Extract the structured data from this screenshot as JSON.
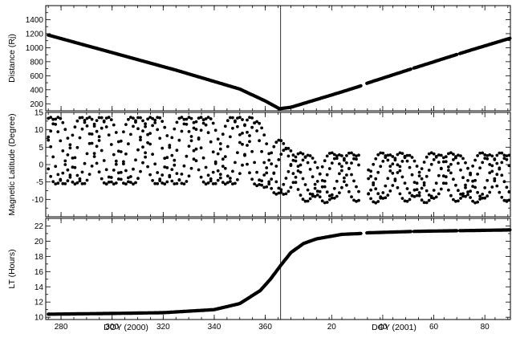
{
  "chart_data": [
    {
      "type": "line",
      "panel": "top",
      "ylabel": "Distance (Rj)",
      "xlabel": "",
      "yticks": [
        200,
        400,
        600,
        800,
        1000,
        1200,
        1400
      ],
      "ylim": [
        100,
        1600
      ],
      "series": [
        {
          "x": [
            275,
            300,
            325,
            350,
            360,
            365.5,
            370,
            380,
            390,
            397,
            400,
            420,
            440,
            460
          ],
          "y": [
            1180,
            930,
            680,
            410,
            240,
            130,
            150,
            260,
            370,
            450,
            495,
            730,
            960,
            1180
          ]
        }
      ],
      "gaps": [
        [
          397.5,
          399.5
        ],
        [
          417,
          418
        ],
        [
          435,
          436
        ]
      ],
      "grid": false
    },
    {
      "type": "scatter",
      "panel": "middle",
      "ylabel": "Magnetic Latitude (Degree)",
      "xlabel": "",
      "yticks": [
        -10,
        -5,
        0,
        5,
        10,
        15
      ],
      "ylim": [
        -15,
        15
      ],
      "series": [
        {
          "model": "4 phase-shifted sinusoidal tracks, amplitude ~10 deg before DOY 366 (2000), decreasing to ~6-8 deg after",
          "period_days": 19.6,
          "phases": [
            0,
            1.0,
            2.4,
            3.4
          ],
          "amplitude_before": 9.6,
          "amplitude_after": [
            6.2,
            7.2,
            6.0,
            7.0
          ],
          "offset_after": [
            -3.5,
            -3.8,
            -3.2,
            -3.6
          ]
        }
      ],
      "gaps": [
        [
          397.5,
          399.5
        ]
      ],
      "grid": false
    },
    {
      "type": "line",
      "panel": "bottom",
      "ylabel": "LT (Hours)",
      "xlabel": "",
      "yticks": [
        10,
        12,
        14,
        16,
        18,
        20,
        22
      ],
      "ylim": [
        9.7,
        23
      ],
      "series": [
        {
          "x": [
            275,
            300,
            320,
            340,
            350,
            358,
            362,
            366,
            370,
            375,
            380,
            390,
            397,
            400,
            420,
            440,
            460
          ],
          "y": [
            10.4,
            10.5,
            10.6,
            11.0,
            11.8,
            13.5,
            15.0,
            16.8,
            18.5,
            19.7,
            20.3,
            20.9,
            21.0,
            21.1,
            21.3,
            21.4,
            21.5
          ]
        }
      ],
      "gaps": [
        [
          397.5,
          399.5
        ],
        [
          417,
          418
        ],
        [
          435,
          436
        ]
      ],
      "grid": false
    }
  ],
  "x_axis": {
    "range_doy_continuous": [
      274,
      456
    ],
    "left": {
      "label": "DOY (2000)",
      "ticks": [
        280,
        300,
        320,
        340,
        360
      ]
    },
    "right": {
      "label": "DOY (2001)",
      "ticks": [
        20,
        40,
        60,
        80
      ]
    },
    "year_boundary": "DOY 366 (2000) / DOY 0 (2001)"
  },
  "colors": {
    "ink": "#000000",
    "background": "#ffffff"
  }
}
